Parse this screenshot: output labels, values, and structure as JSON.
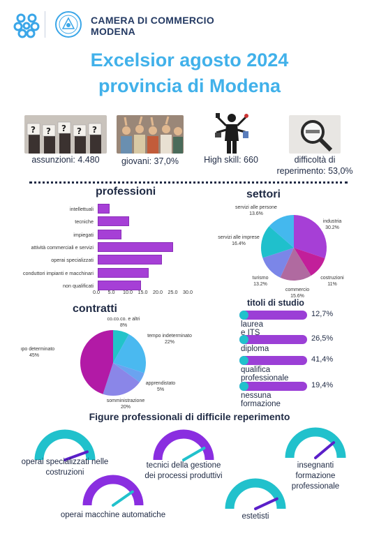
{
  "header": {
    "brand_line1": "CAMERA DI COMMERCIO",
    "brand_line2": "MODENA"
  },
  "title": {
    "line1": "Excelsior agosto 2024",
    "line2": "provincia di Modena"
  },
  "stats": {
    "assunzioni": "assunzioni: 4.480",
    "giovani": "giovani: 37,0%",
    "high_skill": "High skill: 660",
    "difficolta_l1": "difficoltà di",
    "difficolta_l2": "reperimento: 53,0%"
  },
  "professioni": {
    "title": "professioni",
    "chart_data": {
      "type": "bar",
      "orientation": "horizontal",
      "categories": [
        "intellettuali",
        "tecniche",
        "impiegati",
        "attività commerciali e servizi",
        "operai specializzati",
        "conduttori impianti e macchinari",
        "non qualificati"
      ],
      "values": [
        4.0,
        10.5,
        8.0,
        25.0,
        21.5,
        17.0,
        14.5
      ],
      "xlim": [
        0,
        30
      ],
      "ticks": [
        "0.0",
        "5.0",
        "10.0",
        "15.0",
        "20.0",
        "25.0",
        "30.0"
      ],
      "color": "#a63fd6"
    }
  },
  "settori": {
    "title": "settori",
    "chart_data": {
      "type": "pie",
      "slices": [
        {
          "label": "industria",
          "value": "30.2%",
          "v": 30.2,
          "color": "#a63fd6"
        },
        {
          "label": "costruzioni",
          "value": "11%",
          "v": 11.0,
          "color": "#c21f9a"
        },
        {
          "label": "commercio",
          "value": "15.6%",
          "v": 15.6,
          "color": "#b06aa0"
        },
        {
          "label": "turismo",
          "value": "13.2%",
          "v": 13.2,
          "color": "#7b86e8"
        },
        {
          "label": "servizi alle imprese",
          "value": "16.4%",
          "v": 16.4,
          "color": "#1fc0cc"
        },
        {
          "label": "servizi alle persone",
          "value": "13.6%",
          "v": 13.6,
          "color": "#44b8ee"
        }
      ]
    }
  },
  "contratti": {
    "title": "contratti",
    "chart_data": {
      "type": "pie",
      "slices": [
        {
          "label": "co.co.co. e altri",
          "value": "8%",
          "v": 8,
          "color": "#22c3c9"
        },
        {
          "label": "tempo indeterminato",
          "value": "22%",
          "v": 22,
          "color": "#4ab9f0"
        },
        {
          "label": "apprendistato",
          "value": "5%",
          "v": 5,
          "color": "#6aa3f0"
        },
        {
          "label": "somministrazione",
          "value": "20%",
          "v": 20,
          "color": "#8a86e8"
        },
        {
          "label": "tempo determinato",
          "value": "45%",
          "v": 45,
          "color": "#b21aa6"
        }
      ]
    }
  },
  "titoli": {
    "title": "titoli di studio",
    "items": [
      {
        "label": "laurea e ITS",
        "pct": "12,7%",
        "v": 12.7
      },
      {
        "label": "diploma",
        "pct": "26,5%",
        "v": 26.5
      },
      {
        "label": "qualifica professionale",
        "pct": "41,4%",
        "v": 41.4
      },
      {
        "label": "nessuna formazione",
        "pct": "19,4%",
        "v": 19.4
      }
    ]
  },
  "figure": {
    "title": "Figure professionali di difficile reperimento",
    "items": [
      {
        "l1": "operai specializzati nelle",
        "l2": "costruzioni",
        "color": "#21c1cc"
      },
      {
        "l1": "tecnici della gestione",
        "l2": "dei processi produttivi",
        "color": "#8a2ee0"
      },
      {
        "l1": "insegnanti",
        "l2": "formazione",
        "l3": "professionale",
        "color": "#21c1cc"
      },
      {
        "l1": "operai macchine automatiche",
        "color": "#8a2ee0"
      },
      {
        "l1": "estetisti",
        "color": "#21c1cc"
      }
    ]
  },
  "colors": {
    "title": "#41b1ea",
    "purple": "#a63fd6",
    "teal": "#21c1cc",
    "navy": "#1f2a44"
  }
}
